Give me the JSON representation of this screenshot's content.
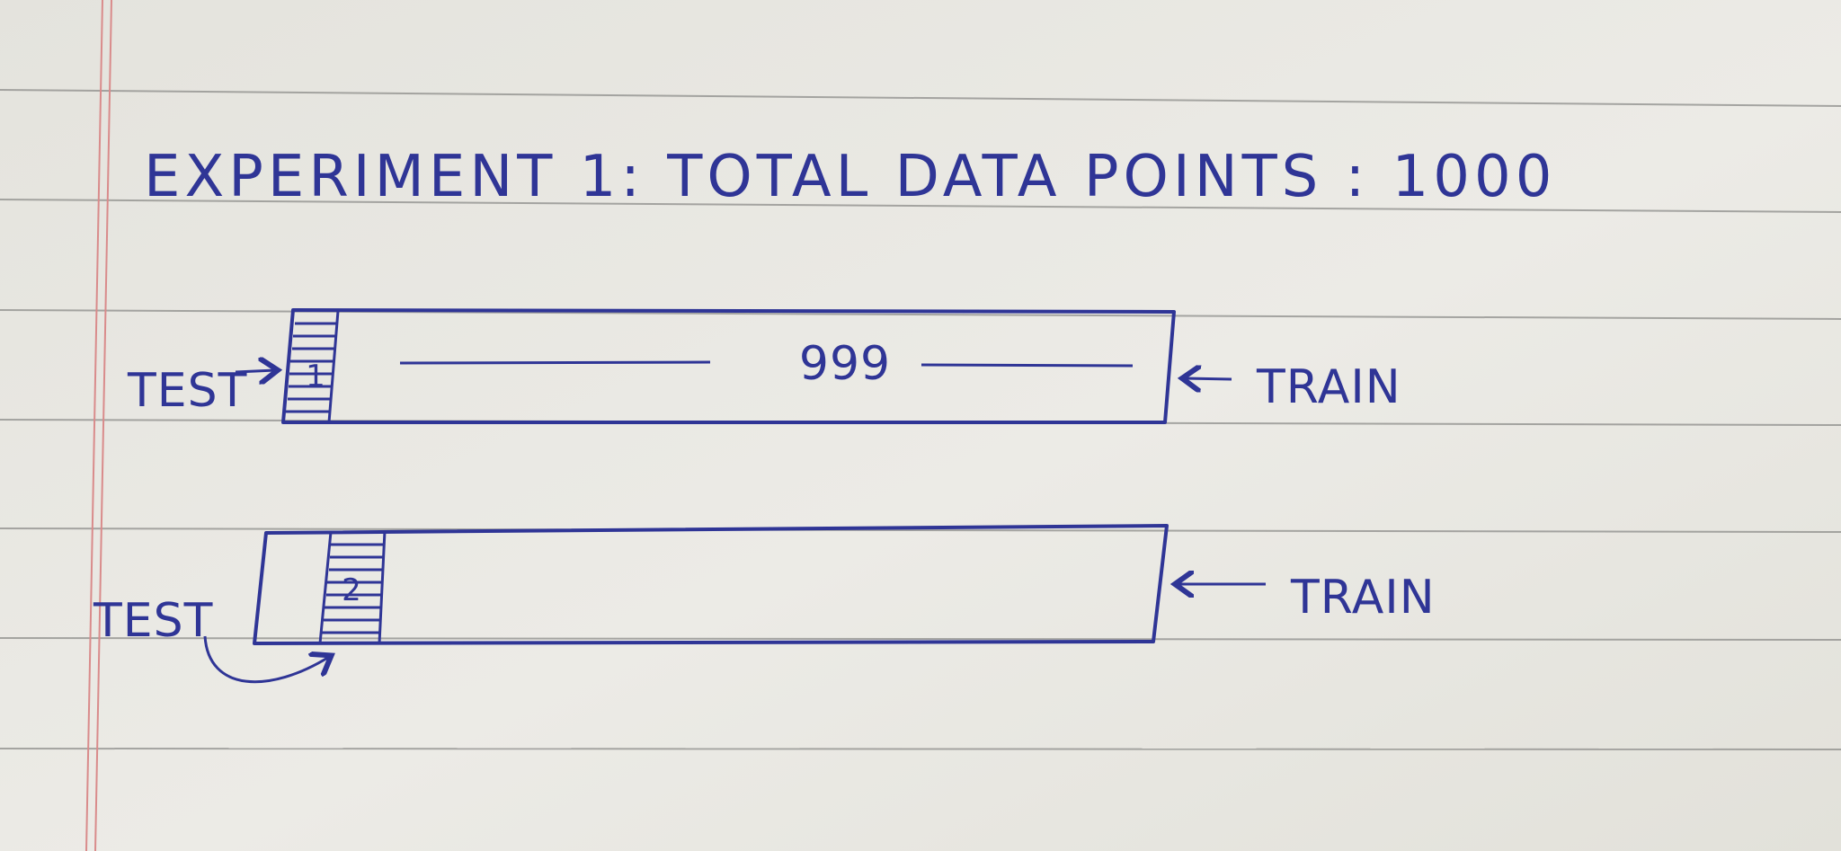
{
  "title": "EXPERIMENT 1:  TOTAL DATA POINTS : 1000",
  "rows": [
    {
      "test_label": "TEST",
      "test_index": "1",
      "train_count": "999",
      "train_label": "TRAIN"
    },
    {
      "test_label": "TEST",
      "test_index": "2",
      "train_label": "TRAIN"
    }
  ],
  "colors": {
    "ink": "#2f3596",
    "paper": "#e9e8e2",
    "rule_line": "#8a8a8a",
    "margin_line": "#d98b8b"
  }
}
